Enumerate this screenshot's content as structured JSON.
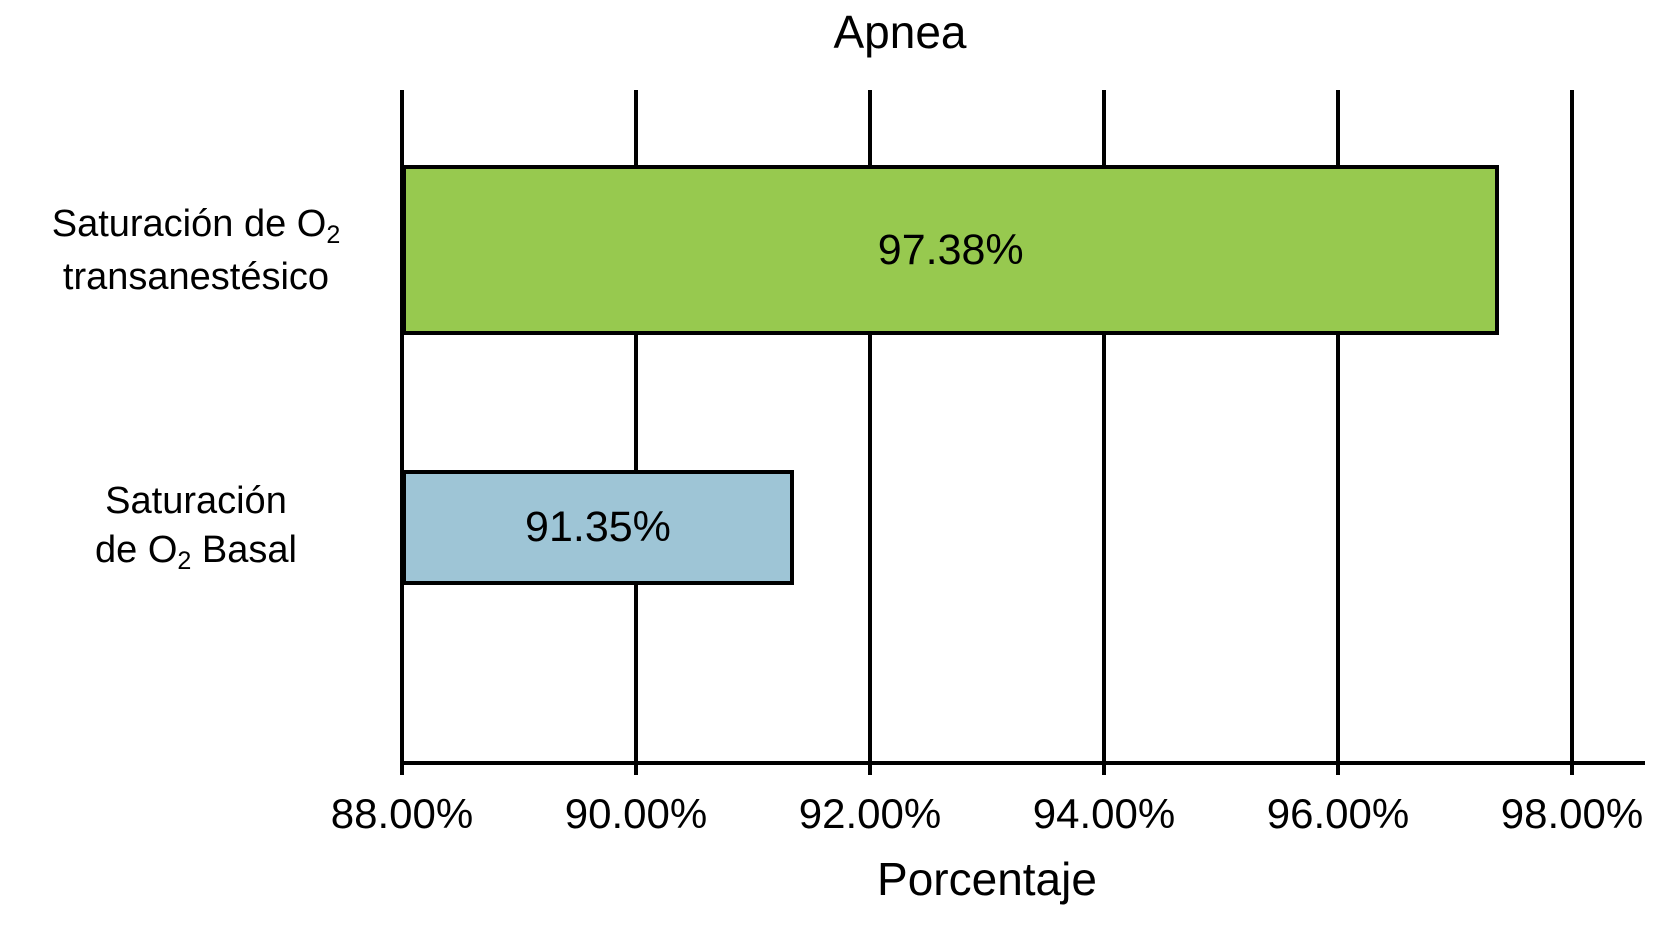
{
  "chart_data": {
    "type": "bar",
    "orientation": "horizontal",
    "title": "Apnea",
    "xlabel": "Porcentaje",
    "x_min": 88,
    "x_max": 98,
    "grid": true,
    "axis_color": "#000000",
    "x_ticks": [
      {
        "value": 88,
        "label": "88.00%"
      },
      {
        "value": 90,
        "label": "90.00%"
      },
      {
        "value": 92,
        "label": "92.00%"
      },
      {
        "value": 94,
        "label": "94.00%"
      },
      {
        "value": 96,
        "label": "96.00%"
      },
      {
        "value": 98,
        "label": "98.00%"
      }
    ],
    "bars": [
      {
        "category_lines": [
          [
            {
              "t": "Saturación de O"
            },
            {
              "t": "2",
              "sub": true
            }
          ],
          [
            {
              "t": "transanestésico"
            }
          ]
        ],
        "value": 97.38,
        "label": "97.38%",
        "color": "#97C94F",
        "border_color": "#000000"
      },
      {
        "category_lines": [
          [
            {
              "t": "Saturación"
            }
          ],
          [
            {
              "t": "de O"
            },
            {
              "t": "2",
              "sub": true
            },
            {
              "t": " Basal"
            }
          ]
        ],
        "value": 91.35,
        "label": "91.35%",
        "color": "#9EC5D6",
        "border_color": "#000000"
      }
    ]
  }
}
